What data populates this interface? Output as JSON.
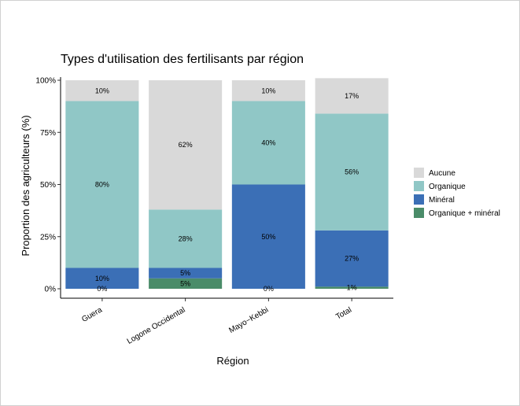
{
  "chart_data": {
    "type": "bar",
    "stacked": true,
    "title": "Types d'utilisation des fertilisants par région",
    "xlabel": "Région",
    "ylabel": "Proportion des agriculteurs (%)",
    "ylim": [
      0,
      100
    ],
    "yticks": [
      "0%",
      "25%",
      "50%",
      "75%",
      "100%"
    ],
    "categories": [
      "Guera",
      "Logone Occidental",
      "Mayo−Kebbi",
      "Total"
    ],
    "legend_position": "right",
    "series": [
      {
        "name": "Organique + minéral",
        "color": "#4a8c69",
        "values": [
          0,
          5,
          0,
          1
        ],
        "labels": [
          "0%",
          "5%",
          "0%",
          "1%"
        ]
      },
      {
        "name": "Minéral",
        "color": "#3b6fb6",
        "values": [
          10,
          5,
          50,
          27
        ],
        "labels": [
          "10%",
          "5%",
          "50%",
          "27%"
        ]
      },
      {
        "name": "Organique",
        "color": "#90c7c6",
        "values": [
          80,
          28,
          40,
          56
        ],
        "labels": [
          "80%",
          "28%",
          "40%",
          "56%"
        ]
      },
      {
        "name": "Aucune",
        "color": "#d9d9d9",
        "values": [
          10,
          62,
          10,
          17
        ],
        "labels": [
          "10%",
          "62%",
          "10%",
          "17%"
        ]
      }
    ],
    "legend_order": [
      "Aucune",
      "Organique",
      "Minéral",
      "Organique + minéral"
    ]
  }
}
